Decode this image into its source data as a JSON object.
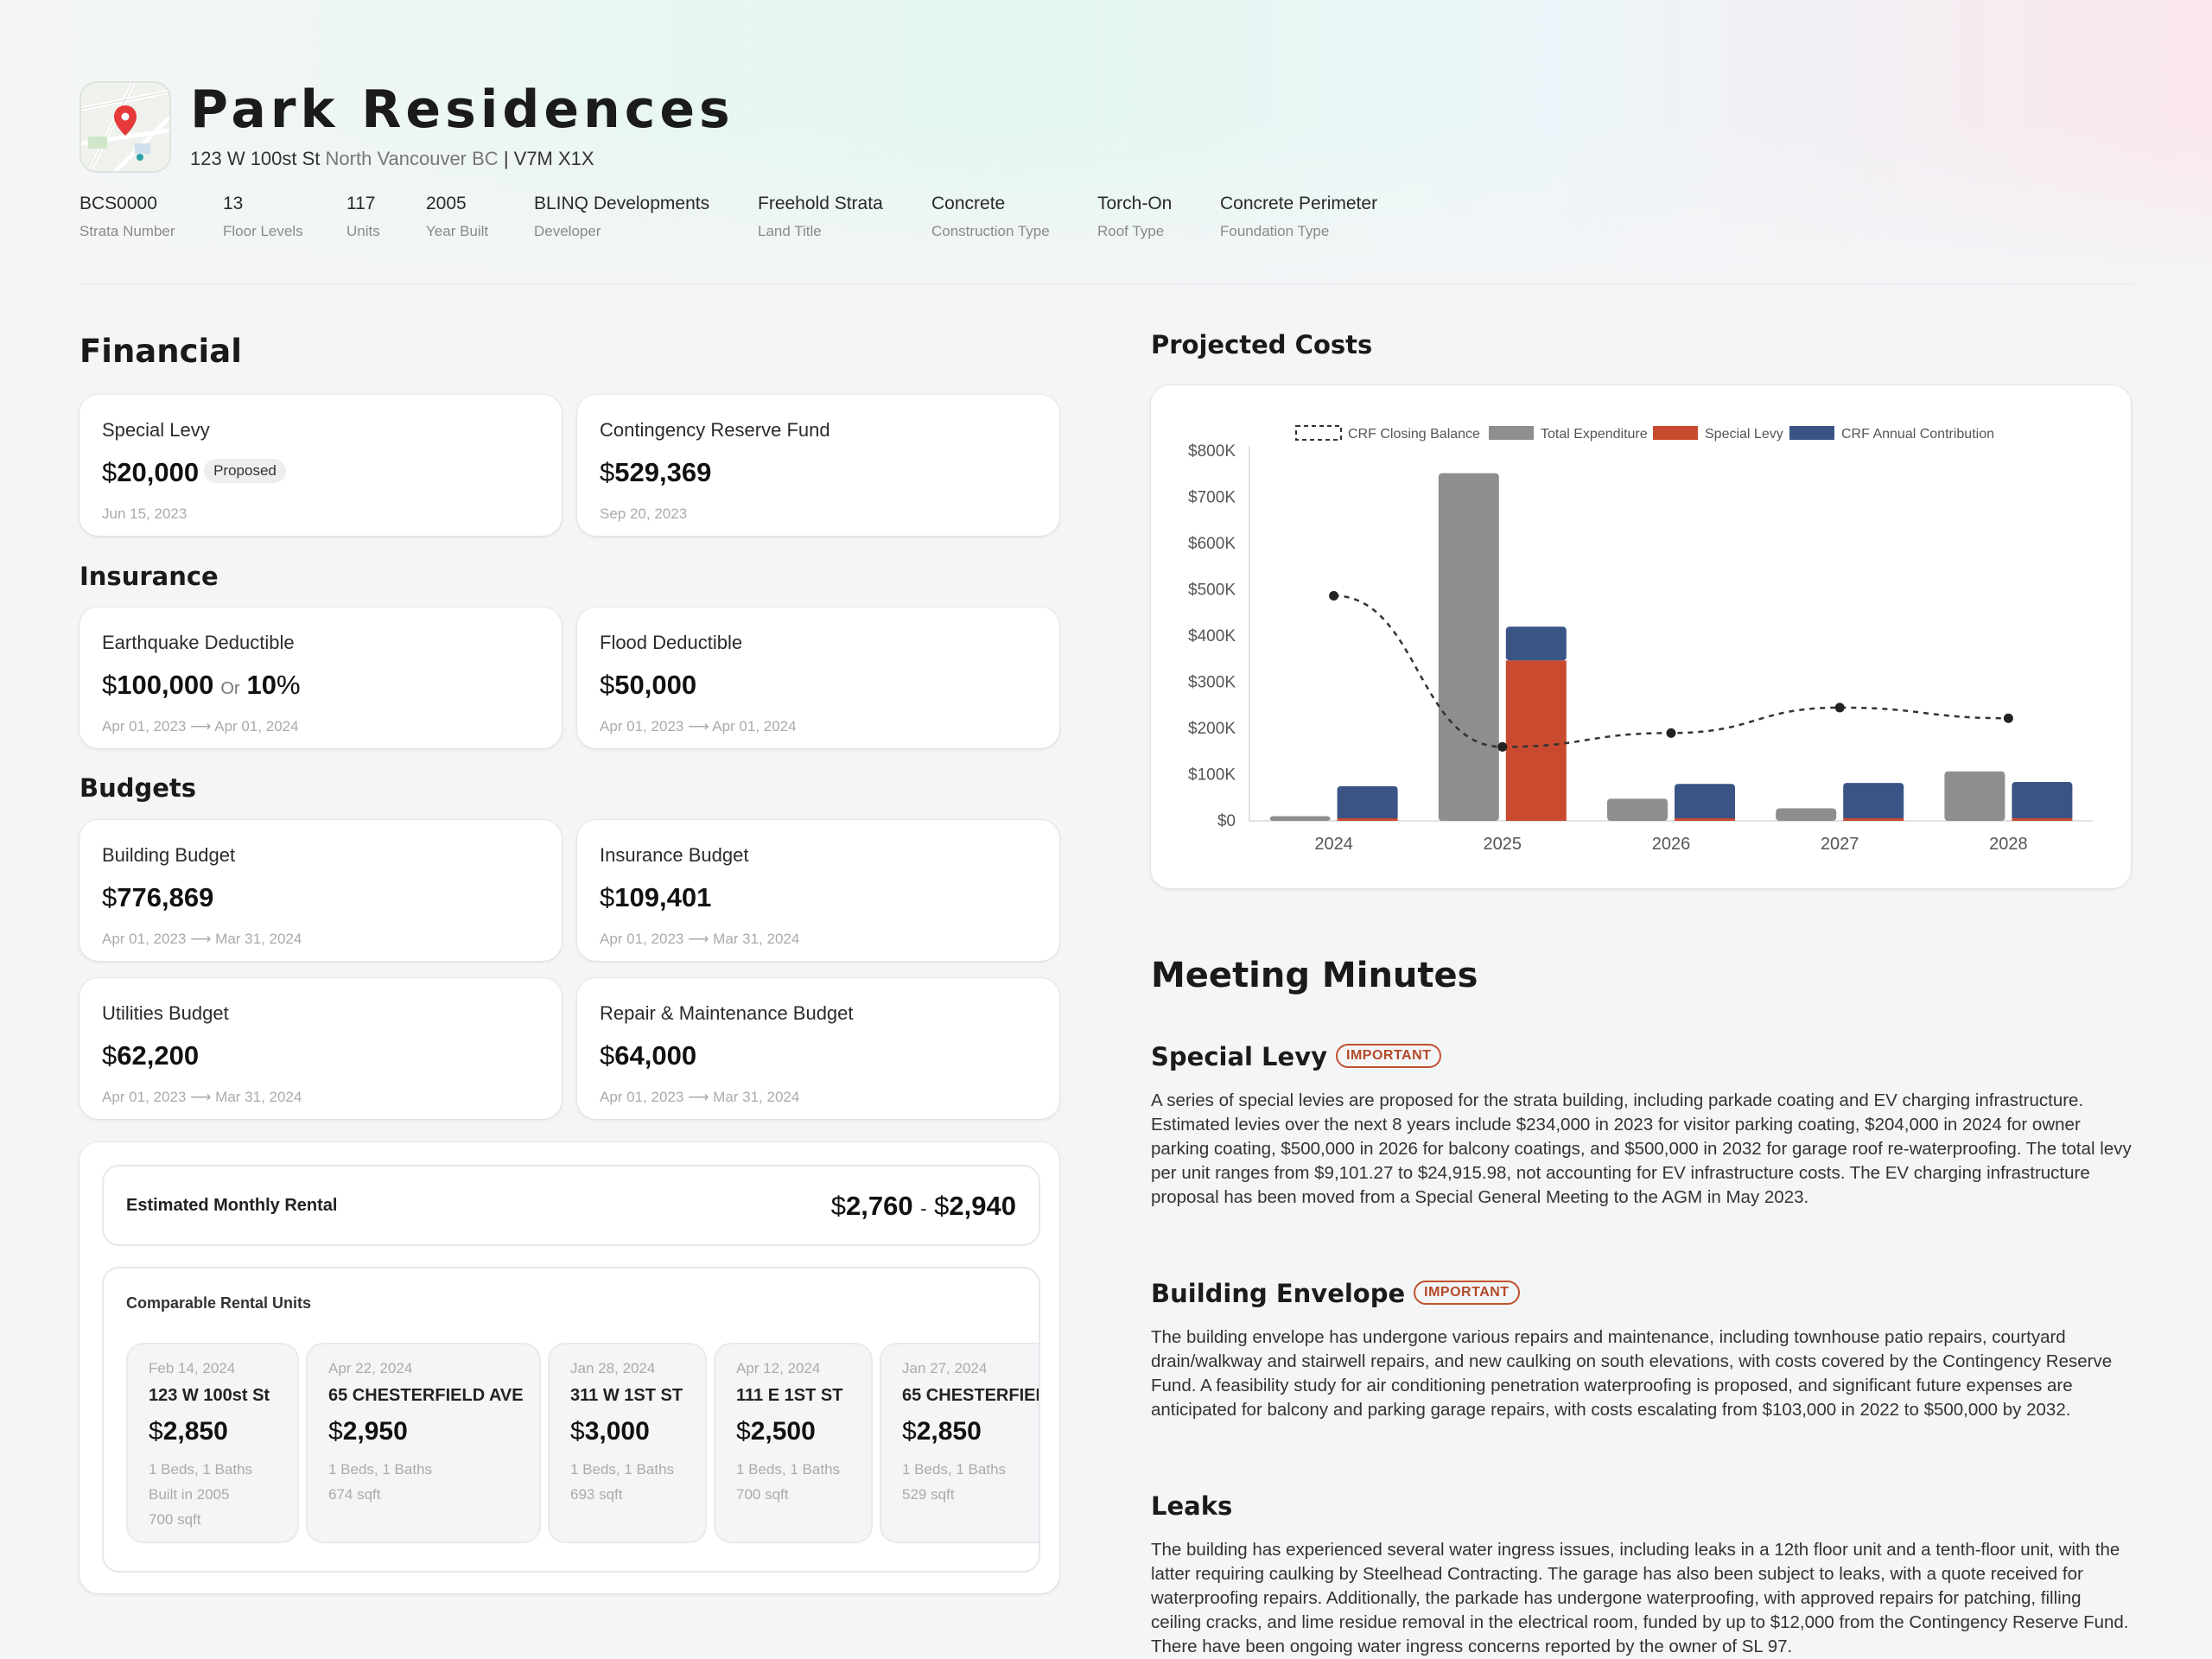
{
  "building": {
    "name": "Park Residences",
    "street": "123 W 100st St",
    "city": "North Vancouver BC",
    "postal": "| V7M X1X",
    "meta": [
      {
        "value": "BCS0000",
        "label": "Strata Number"
      },
      {
        "value": "13",
        "label": "Floor Levels"
      },
      {
        "value": "117",
        "label": "Units"
      },
      {
        "value": "2005",
        "label": "Year Built"
      },
      {
        "value": "BLINQ Developments",
        "label": "Developer"
      },
      {
        "value": "Freehold Strata",
        "label": "Land Title"
      },
      {
        "value": "Concrete",
        "label": "Construction Type"
      },
      {
        "value": "Torch-On",
        "label": "Roof Type"
      },
      {
        "value": "Concrete Perimeter",
        "label": "Foundation Type"
      }
    ]
  },
  "financial": {
    "heading": "Financial",
    "special_levy": {
      "label": "Special Levy",
      "currency": "$",
      "amount": "20,000",
      "pill": "Proposed",
      "date": "Jun 15, 2023"
    },
    "crf": {
      "label": "Contingency Reserve Fund",
      "currency": "$",
      "amount": "529,369",
      "date": "Sep 20, 2023"
    }
  },
  "insurance": {
    "heading": "Insurance",
    "earthquake": {
      "label": "Earthquake Deductible",
      "currency": "$",
      "amount": "100,000",
      "or": "Or",
      "pct": "10",
      "pct_sign": "%",
      "date": "Apr 01, 2023 ⟶ Apr 01, 2024"
    },
    "flood": {
      "label": "Flood Deductible",
      "currency": "$",
      "amount": "50,000",
      "date": "Apr 01, 2023 ⟶ Apr 01, 2024"
    }
  },
  "budgets": {
    "heading": "Budgets",
    "items": [
      {
        "label": "Building Budget",
        "currency": "$",
        "amount": "776,869",
        "date": "Apr 01, 2023 ⟶ Mar 31, 2024"
      },
      {
        "label": "Insurance Budget",
        "currency": "$",
        "amount": "109,401",
        "date": "Apr 01, 2023 ⟶ Mar 31, 2024"
      },
      {
        "label": "Utilities Budget",
        "currency": "$",
        "amount": "62,200",
        "date": "Apr 01, 2023 ⟶ Mar 31, 2024"
      },
      {
        "label": "Repair & Maintenance Budget",
        "currency": "$",
        "amount": "64,000",
        "date": "Apr 01, 2023 ⟶ Mar 31, 2024"
      }
    ]
  },
  "rental": {
    "title": "Estimated Monthly Rental",
    "cur1": "$",
    "low": "2,760",
    "sep": "-",
    "cur2": "$",
    "high": "2,940",
    "comparables_title": "Comparable Rental Units",
    "units": [
      {
        "date": "Feb 14, 2024",
        "address": "123 W 100st St",
        "currency": "$",
        "price": "2,850",
        "beds": "1 Beds, 1 Baths",
        "extra1": "Built in 2005",
        "extra2": "700 sqft"
      },
      {
        "date": "Apr 22, 2024",
        "address": "65 CHESTERFIELD AVE",
        "currency": "$",
        "price": "2,950",
        "beds": "1 Beds, 1 Baths",
        "extra1": "674 sqft",
        "extra2": ""
      },
      {
        "date": "Jan 28, 2024",
        "address": "311 W 1ST ST",
        "currency": "$",
        "price": "3,000",
        "beds": "1 Beds, 1 Baths",
        "extra1": "693 sqft",
        "extra2": ""
      },
      {
        "date": "Apr 12, 2024",
        "address": "111 E 1ST ST",
        "currency": "$",
        "price": "2,500",
        "beds": "1 Beds, 1 Baths",
        "extra1": "700 sqft",
        "extra2": ""
      },
      {
        "date": "Jan 27, 2024",
        "address": "65 CHESTERFIEL",
        "currency": "$",
        "price": "2,850",
        "beds": "1 Beds, 1 Baths",
        "extra1": "529 sqft",
        "extra2": ""
      }
    ]
  },
  "projected_costs": {
    "heading": "Projected Costs"
  },
  "chart_data": {
    "type": "bar",
    "categories": [
      "2024",
      "2025",
      "2026",
      "2027",
      "2028"
    ],
    "series": [
      {
        "name": "Total Expenditure",
        "color": "#8e8e91",
        "values": [
          10000,
          752000,
          48000,
          27000,
          107000
        ]
      },
      {
        "name": "Special Levy",
        "color": "#c94a2f",
        "values": [
          0,
          347000,
          0,
          0,
          0
        ]
      },
      {
        "name": "CRF Annual Contribution",
        "color": "#3a5486",
        "values": [
          75000,
          73000,
          80000,
          82000,
          84000
        ]
      },
      {
        "name": "CRF Closing Balance",
        "color": "#333333",
        "style": "dashed-line",
        "values": [
          487000,
          160000,
          190000,
          245000,
          222000
        ]
      }
    ],
    "stacked_groups": [
      [
        "Total Expenditure"
      ],
      [
        "Special Levy",
        "CRF Annual Contribution"
      ]
    ],
    "y_ticks": [
      "$0",
      "$100K",
      "$200K",
      "$300K",
      "$400K",
      "$500K",
      "$600K",
      "$700K",
      "$800K"
    ],
    "ylim": [
      0,
      800000
    ],
    "legend_position": "top",
    "legend": [
      "CRF Closing Balance",
      "Total Expenditure",
      "Special Levy",
      "CRF Annual Contribution"
    ]
  },
  "minutes": {
    "heading": "Meeting Minutes",
    "items": [
      {
        "title": "Special Levy",
        "badge": "IMPORTANT",
        "text": "A series of special levies are proposed for the strata building, including parkade coating and EV charging infrastructure. Estimated levies over the next 8 years include $234,000 in 2023 for visitor parking coating, $204,000 in 2024 for owner parking coating, $500,000 in 2026 for balcony coatings, and $500,000 in 2032 for garage roof re-waterproofing. The total levy per unit ranges from $9,101.27 to $24,915.98, not accounting for EV infrastructure costs. The EV charging infrastructure proposal has been moved from a Special General Meeting to the AGM in May 2023."
      },
      {
        "title": "Building Envelope",
        "badge": "IMPORTANT",
        "text": "The building envelope has undergone various repairs and maintenance, including townhouse patio repairs, courtyard drain/walkway and stairwell repairs, and new caulking on south elevations, with costs covered by the Contingency Reserve Fund. A feasibility study for air conditioning penetration waterproofing is proposed, and significant future expenses are anticipated for balcony and parking garage repairs, with costs escalating from $103,000 in 2022 to $500,000 by 2032."
      },
      {
        "title": "Leaks",
        "badge": "",
        "text": "The building has experienced several water ingress issues, including leaks in a 12th floor unit and a tenth-floor unit, with the latter requiring caulking by Steelhead Contracting. The garage has also been subject to leaks, with a quote received for waterproofing repairs. Additionally, the parkade has undergone waterproofing, with approved repairs for patching, filling ceiling cracks, and lime residue removal in the electrical room, funded by up to $12,000 from the Contingency Reserve Fund. There have been ongoing water ingress concerns reported by the owner of SL 97."
      }
    ]
  }
}
